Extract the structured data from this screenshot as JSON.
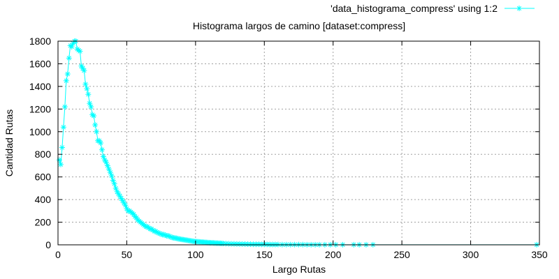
{
  "chart_data": {
    "type": "line",
    "title": "Histograma largos de camino [dataset:compress]",
    "xlabel": "Largo Rutas",
    "ylabel": "Cantidad Rutas",
    "xlim": [
      0,
      350
    ],
    "ylim": [
      0,
      1800
    ],
    "xticks": [
      0,
      50,
      100,
      150,
      200,
      250,
      300,
      350
    ],
    "yticks": [
      0,
      200,
      400,
      600,
      800,
      1000,
      1200,
      1400,
      1600,
      1800
    ],
    "grid": true,
    "legend_position": "top-right",
    "series": [
      {
        "name": "'data_histograma_compress' using 1:2",
        "color": "#00ffff",
        "marker": "asterisk",
        "x": [
          1,
          2,
          3,
          4,
          5,
          6,
          7,
          8,
          9,
          10,
          11,
          12,
          13,
          14,
          15,
          16,
          17,
          18,
          19,
          20,
          21,
          22,
          23,
          24,
          25,
          26,
          27,
          28,
          29,
          30,
          31,
          32,
          33,
          34,
          35,
          36,
          37,
          38,
          39,
          40,
          41,
          42,
          43,
          44,
          45,
          46,
          47,
          48,
          49,
          50,
          51,
          52,
          53,
          54,
          55,
          56,
          57,
          58,
          59,
          60,
          61,
          62,
          63,
          64,
          65,
          66,
          67,
          68,
          69,
          70,
          71,
          72,
          73,
          74,
          75,
          76,
          77,
          78,
          79,
          80,
          81,
          82,
          83,
          84,
          85,
          86,
          87,
          88,
          89,
          90,
          91,
          92,
          93,
          94,
          95,
          96,
          97,
          98,
          99,
          100,
          101,
          102,
          103,
          104,
          105,
          106,
          107,
          108,
          109,
          110,
          111,
          112,
          113,
          114,
          115,
          116,
          117,
          118,
          119,
          120,
          122,
          124,
          126,
          128,
          130,
          132,
          134,
          136,
          138,
          140,
          142,
          144,
          146,
          148,
          150,
          152,
          154,
          156,
          158,
          160,
          163,
          166,
          169,
          172,
          175,
          178,
          181,
          184,
          187,
          190,
          194,
          198,
          202,
          207,
          215,
          219,
          224,
          229,
          348
        ],
        "y": [
          750,
          710,
          860,
          1040,
          1220,
          1450,
          1510,
          1650,
          1760,
          1750,
          1780,
          1800,
          1800,
          1730,
          1720,
          1710,
          1580,
          1560,
          1540,
          1420,
          1380,
          1330,
          1250,
          1220,
          1150,
          1140,
          1060,
          1000,
          920,
          920,
          900,
          840,
          780,
          750,
          730,
          700,
          670,
          640,
          610,
          570,
          540,
          500,
          470,
          450,
          430,
          410,
          390,
          370,
          350,
          320,
          300,
          300,
          290,
          280,
          270,
          250,
          240,
          220,
          210,
          200,
          190,
          180,
          170,
          160,
          160,
          150,
          140,
          140,
          130,
          120,
          120,
          110,
          105,
          100,
          95,
          90,
          90,
          85,
          80,
          80,
          75,
          70,
          65,
          62,
          60,
          58,
          55,
          52,
          50,
          48,
          46,
          44,
          42,
          40,
          38,
          36,
          34,
          32,
          30,
          29,
          28,
          27,
          26,
          25,
          24,
          23,
          22,
          21,
          20,
          19,
          18,
          18,
          17,
          16,
          15,
          15,
          14,
          14,
          13,
          12,
          11,
          10,
          9,
          9,
          8,
          8,
          7,
          7,
          6,
          6,
          5,
          5,
          5,
          4,
          4,
          4,
          3,
          3,
          3,
          3,
          2,
          2,
          2,
          2,
          2,
          2,
          1,
          1,
          1,
          1,
          1,
          1,
          1,
          1,
          1,
          1,
          1,
          1,
          1
        ]
      }
    ]
  }
}
